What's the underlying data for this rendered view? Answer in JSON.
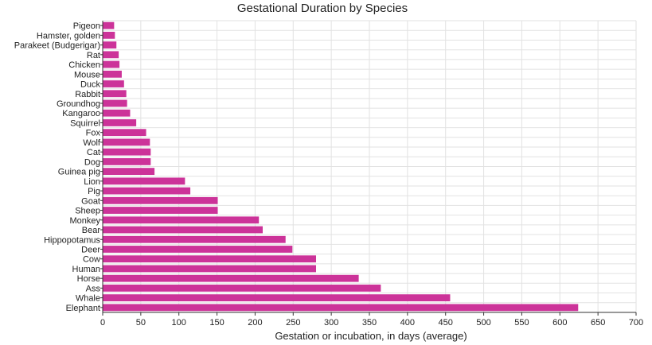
{
  "chart_data": {
    "type": "bar",
    "orientation": "horizontal",
    "title": "Gestational Duration by Species",
    "xlabel": "Gestation or incubation, in days (average)",
    "ylabel": "",
    "xlim": [
      0,
      700
    ],
    "xticks": [
      0,
      50,
      100,
      150,
      200,
      250,
      300,
      350,
      400,
      450,
      500,
      550,
      600,
      650,
      700
    ],
    "grid": true,
    "bar_color": "#cc3399",
    "categories": [
      "Pigeon",
      "Hamster, golden",
      "Parakeet (Budgerigar)",
      "Rat",
      "Chicken",
      "Mouse",
      "Duck",
      "Rabbit",
      "Groundhog",
      "Kangaroo",
      "Squirrel",
      "Fox",
      "Wolf",
      "Cat",
      "Dog",
      "Guinea pig",
      "Lion",
      "Pig",
      "Goat",
      "Sheep",
      "Monkey",
      "Bear",
      "Hippopotamus",
      "Deer",
      "Cow",
      "Human",
      "Horse",
      "Ass",
      "Whale",
      "Elephant"
    ],
    "values": [
      15,
      16,
      18,
      21,
      22,
      25,
      28,
      31,
      32,
      36,
      44,
      57,
      62,
      63,
      63,
      68,
      108,
      115,
      151,
      151,
      205,
      210,
      240,
      249,
      280,
      280,
      336,
      365,
      456,
      624
    ]
  }
}
